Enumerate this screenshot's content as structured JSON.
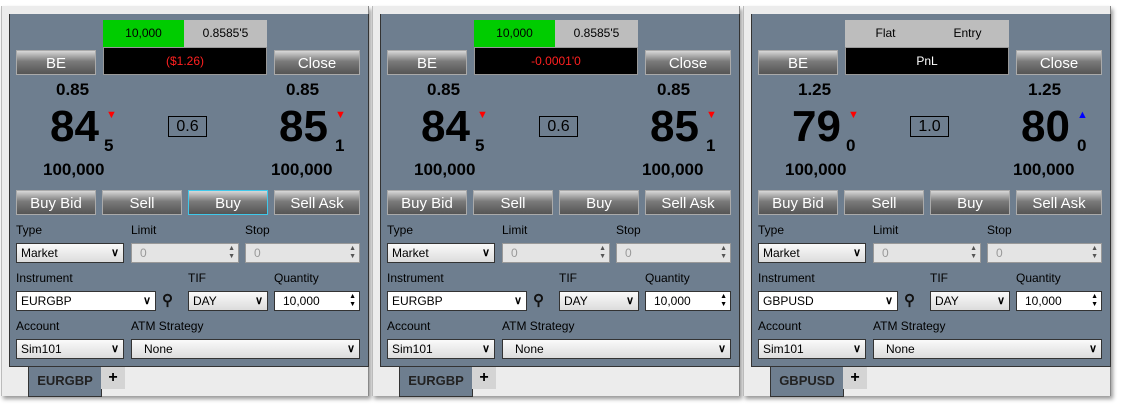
{
  "colors": {
    "panel": "#6e7e8f",
    "position_green": "#00cc00",
    "pnl_red": "#ff2020",
    "tick_down": "#ff0000",
    "tick_up": "#0000ff"
  },
  "labels": {
    "be": "BE",
    "close": "Close",
    "buy_bid": "Buy Bid",
    "sell": "Sell",
    "buy": "Buy",
    "sell_ask": "Sell Ask",
    "type": "Type",
    "limit": "Limit",
    "stop": "Stop",
    "instrument": "Instrument",
    "tif": "TIF",
    "quantity": "Quantity",
    "account": "Account",
    "atm": "ATM Strategy",
    "add_tab": "+"
  },
  "panels": [
    {
      "tab": "EURGBP",
      "pos_qty": "10,000",
      "pos_price": "0.8585'5",
      "pnl": "($1.26)",
      "pnl_color": "red",
      "bid_top": "0.85",
      "bid_big": "84",
      "bid_small": "5",
      "bid_dir": "down",
      "ask_top": "0.85",
      "ask_big": "85",
      "ask_small": "1",
      "ask_dir": "down",
      "spread": "0.6",
      "bid_size": "100,000",
      "ask_size": "100,000",
      "type": "Market",
      "limit": "0",
      "stop": "0",
      "instrument": "EURGBP",
      "tif": "DAY",
      "quantity": "10,000",
      "account": "Sim101",
      "atm": "None",
      "buy_selected": true
    },
    {
      "tab": "EURGBP",
      "pos_qty": "10,000",
      "pos_price": "0.8585'5",
      "pnl": "-0.0001'0",
      "pnl_color": "red",
      "bid_top": "0.85",
      "bid_big": "84",
      "bid_small": "5",
      "bid_dir": "down",
      "ask_top": "0.85",
      "ask_big": "85",
      "ask_small": "1",
      "ask_dir": "down",
      "spread": "0.6",
      "bid_size": "100,000",
      "ask_size": "100,000",
      "type": "Market",
      "limit": "0",
      "stop": "0",
      "instrument": "EURGBP",
      "tif": "DAY",
      "quantity": "10,000",
      "account": "Sim101",
      "atm": "None",
      "buy_selected": false
    },
    {
      "tab": "GBPUSD",
      "pos_qty": "Flat",
      "pos_price": "Entry",
      "pnl": "PnL",
      "pnl_color": "white",
      "bid_top": "1.25",
      "bid_big": "79",
      "bid_small": "0",
      "bid_dir": "down",
      "ask_top": "1.25",
      "ask_big": "80",
      "ask_small": "0",
      "ask_dir": "up",
      "spread": "1.0",
      "bid_size": "100,000",
      "ask_size": "100,000",
      "type": "Market",
      "limit": "0",
      "stop": "0",
      "instrument": "GBPUSD",
      "tif": "DAY",
      "quantity": "10,000",
      "account": "Sim101",
      "atm": "None",
      "buy_selected": false
    }
  ]
}
